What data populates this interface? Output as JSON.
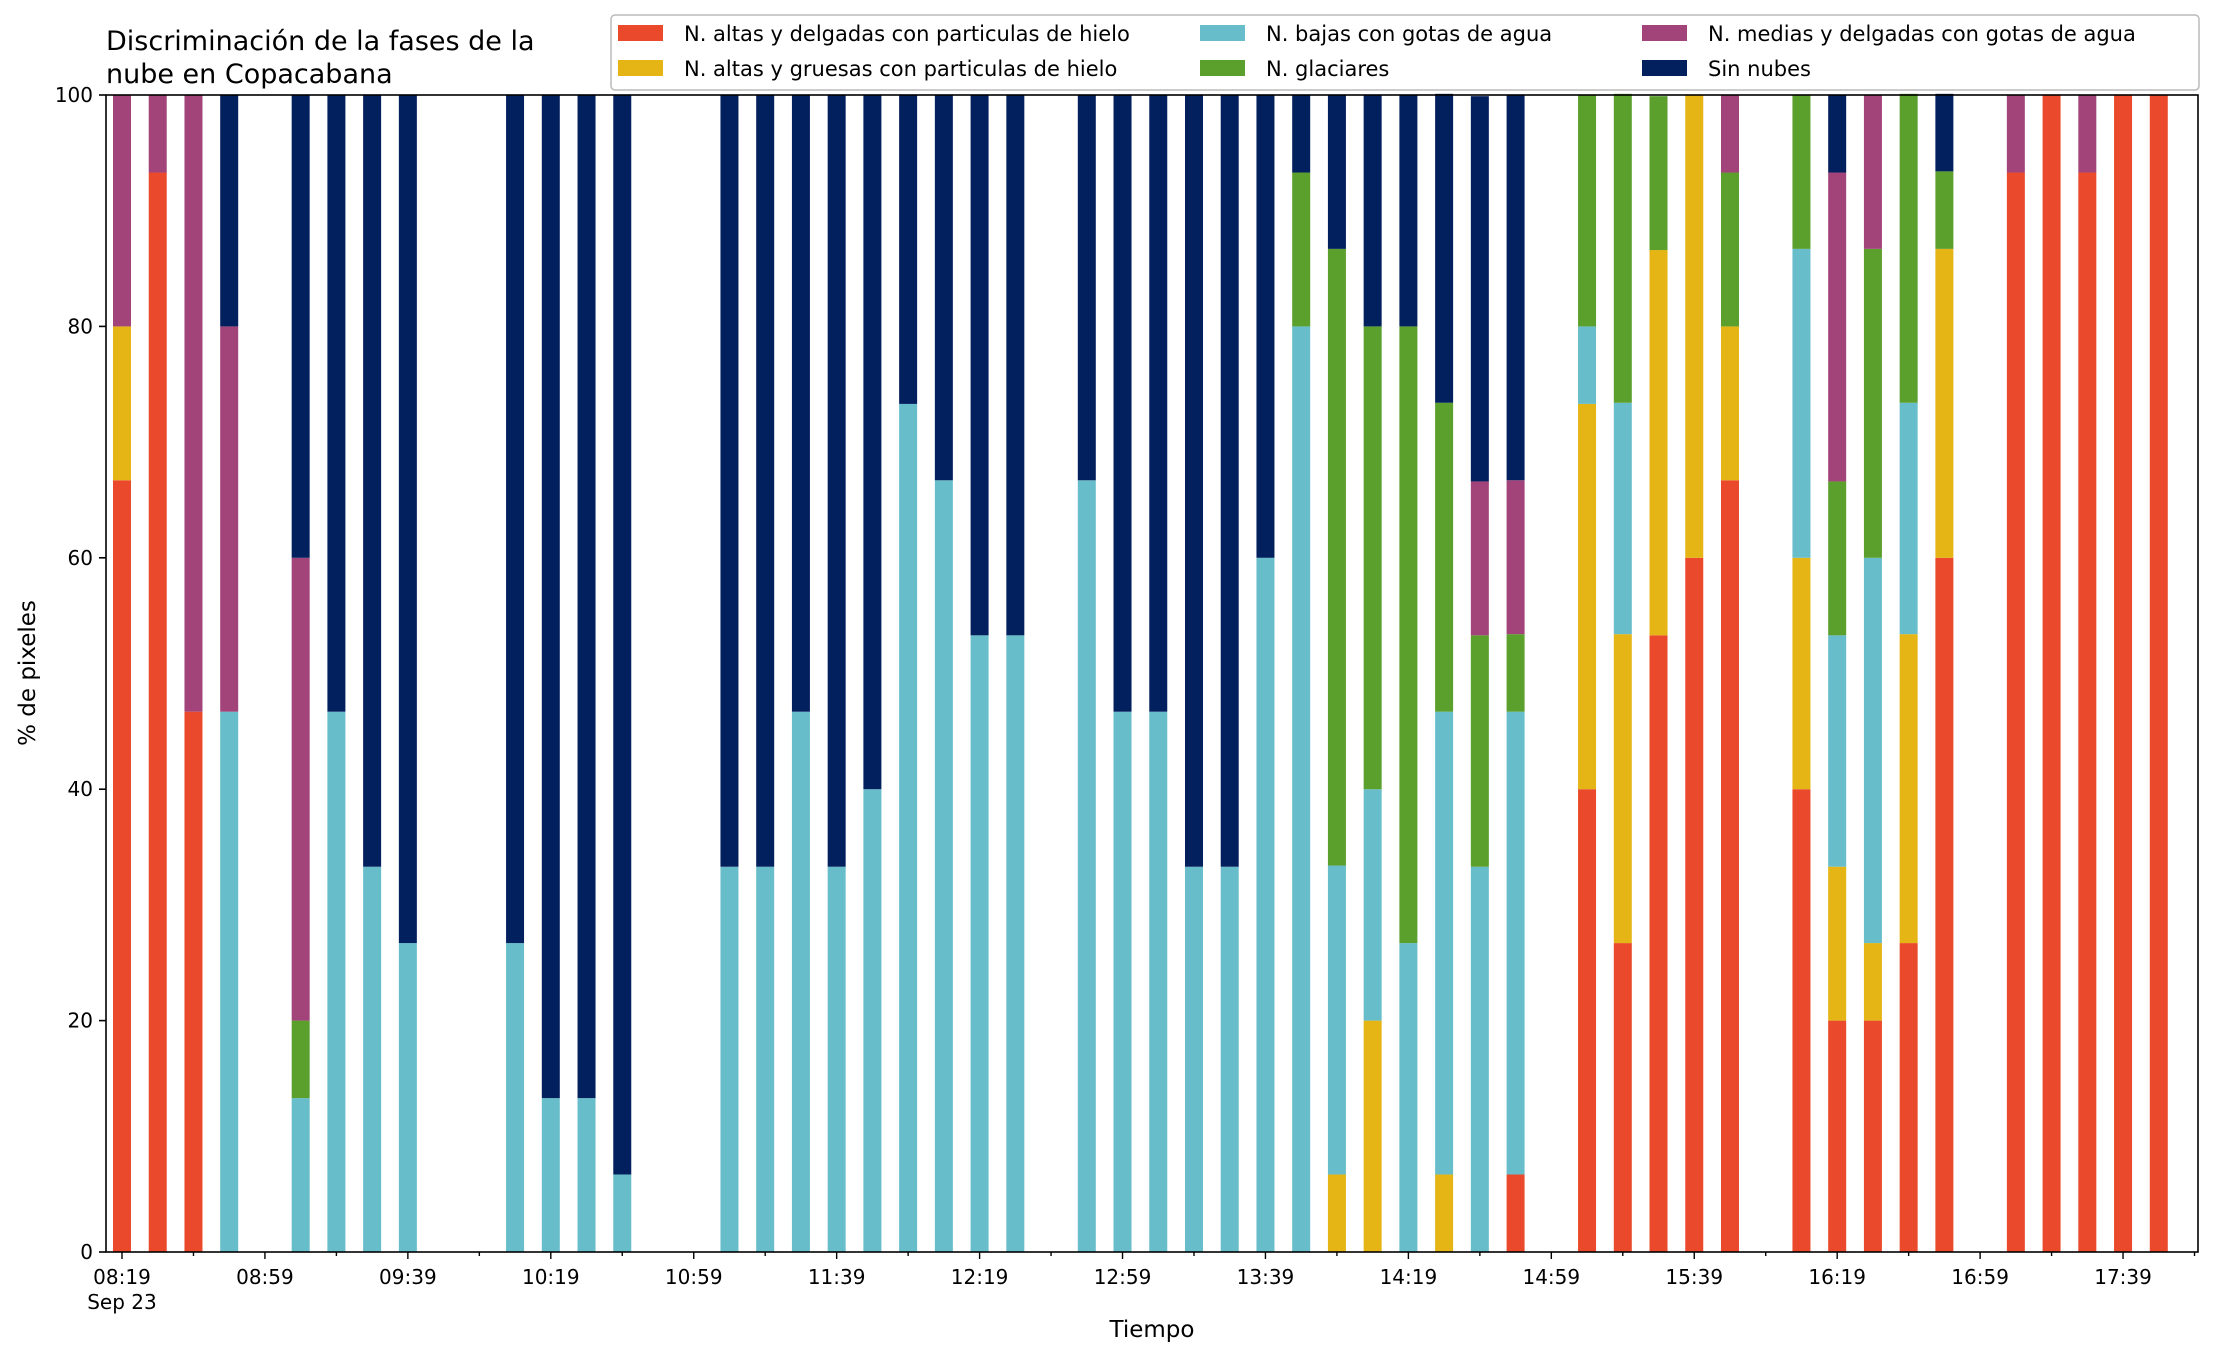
{
  "chart_data": {
    "type": "bar",
    "stacked": true,
    "title_lines": [
      "Discriminación de la fases de la",
      "nube en Copacabana"
    ],
    "xlabel": "Tiempo",
    "ylabel": "% de pixeles",
    "ylim": [
      0,
      100
    ],
    "yticks": [
      "0",
      "20",
      "40",
      "60",
      "80",
      "100"
    ],
    "xticks": [
      {
        "t": "08:19",
        "sub": "Sep 23"
      },
      {
        "t": "08:59"
      },
      {
        "t": "09:39"
      },
      {
        "t": "10:19"
      },
      {
        "t": "10:59"
      },
      {
        "t": "11:39"
      },
      {
        "t": "12:19"
      },
      {
        "t": "12:59"
      },
      {
        "t": "13:39"
      },
      {
        "t": "14:19"
      },
      {
        "t": "14:59"
      },
      {
        "t": "15:39"
      },
      {
        "t": "16:19"
      },
      {
        "t": "16:59"
      },
      {
        "t": "17:39"
      }
    ],
    "grid": false,
    "legend_position": "top-right",
    "series": [
      {
        "name": "N. altas y delgadas con particulas de hielo",
        "color": "#ea4a2b"
      },
      {
        "name": "N. altas y gruesas con particulas de hielo",
        "color": "#e4b515"
      },
      {
        "name": "N. bajas con gotas de agua",
        "color": "#67bdca"
      },
      {
        "name": "N. glaciares",
        "color": "#5b9f2c"
      },
      {
        "name": "N. medias y delgadas con gotas de agua",
        "color": "#a2447a"
      },
      {
        "name": "Sin nubes",
        "color": "#03205e"
      }
    ],
    "bars": [
      {
        "time": "08:19",
        "values": [
          66.7,
          13.3,
          0,
          0,
          20,
          0
        ]
      },
      {
        "time": "08:29",
        "values": [
          93.3,
          0,
          0,
          0,
          6.7,
          0
        ]
      },
      {
        "time": "08:39",
        "values": [
          46.7,
          0,
          0,
          0,
          53.3,
          0
        ]
      },
      {
        "time": "08:49",
        "values": [
          0,
          0,
          46.7,
          0,
          33.3,
          20
        ]
      },
      {
        "time": "09:09",
        "values": [
          0,
          0,
          13.3,
          6.7,
          40,
          40
        ]
      },
      {
        "time": "09:19",
        "values": [
          0,
          0,
          46.7,
          0,
          0,
          53.3
        ]
      },
      {
        "time": "09:29",
        "values": [
          0,
          0,
          33.3,
          0,
          0,
          66.7
        ]
      },
      {
        "time": "09:39",
        "values": [
          0,
          0,
          26.7,
          0,
          0,
          73.3
        ]
      },
      {
        "time": "10:09",
        "values": [
          0,
          0,
          26.7,
          0,
          0,
          73.3
        ]
      },
      {
        "time": "10:19",
        "values": [
          0,
          0,
          13.3,
          0,
          0,
          86.7
        ]
      },
      {
        "time": "10:29",
        "values": [
          0,
          0,
          13.3,
          0,
          0,
          86.7
        ]
      },
      {
        "time": "10:39",
        "values": [
          0,
          0,
          6.7,
          0,
          0,
          93.3
        ]
      },
      {
        "time": "11:09",
        "values": [
          0,
          0,
          33.3,
          0,
          0,
          66.7
        ]
      },
      {
        "time": "11:19",
        "values": [
          0,
          0,
          33.3,
          0,
          0,
          66.7
        ]
      },
      {
        "time": "11:29",
        "values": [
          0,
          0,
          46.7,
          0,
          0,
          53.3
        ]
      },
      {
        "time": "11:39",
        "values": [
          0,
          0,
          33.3,
          0,
          0,
          66.7
        ]
      },
      {
        "time": "11:49",
        "values": [
          0,
          0,
          40,
          0,
          0,
          60
        ]
      },
      {
        "time": "11:59",
        "values": [
          0,
          0,
          73.3,
          0,
          0,
          26.7
        ]
      },
      {
        "time": "12:09",
        "values": [
          0,
          0,
          66.7,
          0,
          0,
          33.3
        ]
      },
      {
        "time": "12:19",
        "values": [
          0,
          0,
          53.3,
          0,
          0,
          46.7
        ]
      },
      {
        "time": "12:29",
        "values": [
          0,
          0,
          53.3,
          0,
          0,
          46.7
        ]
      },
      {
        "time": "12:49",
        "values": [
          0,
          0,
          66.7,
          0,
          0,
          33.3
        ]
      },
      {
        "time": "12:59",
        "values": [
          0,
          0,
          46.7,
          0,
          0,
          53.3
        ]
      },
      {
        "time": "13:09",
        "values": [
          0,
          0,
          46.7,
          0,
          0,
          53.3
        ]
      },
      {
        "time": "13:19",
        "values": [
          0,
          0,
          33.3,
          0,
          0,
          66.7
        ]
      },
      {
        "time": "13:29",
        "values": [
          0,
          0,
          33.3,
          0,
          0,
          66.7
        ]
      },
      {
        "time": "13:39",
        "values": [
          0,
          0,
          60,
          0,
          0,
          40
        ]
      },
      {
        "time": "13:49",
        "values": [
          0,
          0,
          80,
          13.3,
          0,
          6.7
        ]
      },
      {
        "time": "13:59",
        "values": [
          0,
          6.7,
          26.7,
          53.3,
          0,
          13.3
        ]
      },
      {
        "time": "14:09",
        "values": [
          0,
          20,
          20,
          40,
          0,
          20
        ]
      },
      {
        "time": "14:19",
        "values": [
          0,
          0,
          26.7,
          53.3,
          0,
          20
        ]
      },
      {
        "time": "14:29",
        "values": [
          0,
          6.7,
          40,
          26.7,
          0,
          26.7
        ]
      },
      {
        "time": "14:39",
        "values": [
          0,
          0,
          33.3,
          20,
          13.3,
          33.3
        ]
      },
      {
        "time": "14:49",
        "values": [
          6.7,
          0,
          40,
          6.7,
          13.3,
          33.3
        ]
      },
      {
        "time": "15:09",
        "values": [
          40,
          33.3,
          6.7,
          20,
          0,
          0
        ]
      },
      {
        "time": "15:19",
        "values": [
          26.7,
          26.7,
          20,
          26.7,
          0,
          0
        ]
      },
      {
        "time": "15:29",
        "values": [
          53.3,
          33.3,
          0,
          13.3,
          0,
          0
        ]
      },
      {
        "time": "15:39",
        "values": [
          60,
          40,
          0,
          0,
          0,
          0
        ]
      },
      {
        "time": "15:49",
        "values": [
          66.7,
          13.3,
          0,
          13.3,
          6.7,
          0
        ]
      },
      {
        "time": "16:09",
        "values": [
          40,
          20,
          26.7,
          13.3,
          0,
          0
        ]
      },
      {
        "time": "16:19",
        "values": [
          20,
          13.3,
          20,
          13.3,
          26.7,
          6.7
        ]
      },
      {
        "time": "16:29",
        "values": [
          20,
          6.7,
          33.3,
          26.7,
          13.3,
          0
        ]
      },
      {
        "time": "16:39",
        "values": [
          26.7,
          26.7,
          20,
          26.7,
          0,
          0
        ]
      },
      {
        "time": "16:49",
        "values": [
          60,
          26.7,
          0,
          6.7,
          0,
          6.7
        ]
      },
      {
        "time": "17:09",
        "values": [
          93.3,
          0,
          0,
          0,
          6.7,
          0
        ]
      },
      {
        "time": "17:19",
        "values": [
          100,
          0,
          0,
          0,
          0,
          0
        ]
      },
      {
        "time": "17:29",
        "values": [
          93.3,
          0,
          0,
          0,
          6.7,
          0
        ]
      },
      {
        "time": "17:39",
        "values": [
          100,
          0,
          0,
          0,
          0,
          0
        ]
      },
      {
        "time": "17:49",
        "values": [
          100,
          0,
          0,
          0,
          0,
          0
        ]
      }
    ]
  }
}
